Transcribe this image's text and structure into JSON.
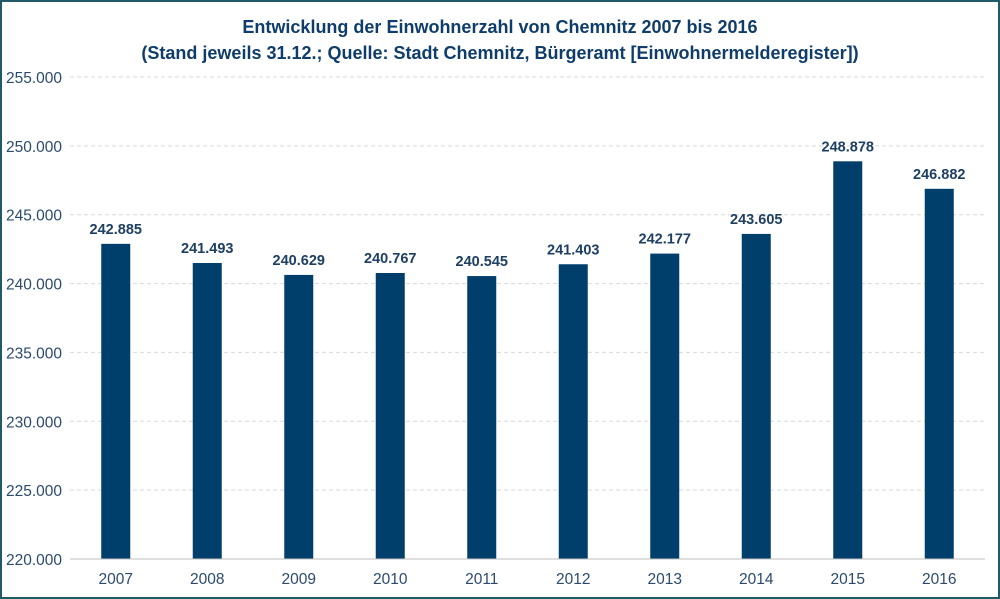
{
  "chart_data": {
    "type": "bar",
    "title": "Entwicklung der Einwohnerzahl von Chemnitz 2007 bis 2016",
    "subtitle": "(Stand jeweils 31.12.; Quelle: Stadt Chemnitz, Bürgeramt [Einwohnermelderegister])",
    "categories": [
      "2007",
      "2008",
      "2009",
      "2010",
      "2011",
      "2012",
      "2013",
      "2014",
      "2015",
      "2016"
    ],
    "values": [
      242885,
      241493,
      240629,
      240767,
      240545,
      241403,
      242177,
      243605,
      248878,
      246882
    ],
    "data_labels": [
      "242.885",
      "241.493",
      "240.629",
      "240.767",
      "240.545",
      "241.403",
      "242.177",
      "243.605",
      "248.878",
      "246.882"
    ],
    "ylim": [
      220000,
      255000
    ],
    "yticks": [
      220000,
      225000,
      230000,
      235000,
      240000,
      245000,
      250000,
      255000
    ],
    "ytick_labels": [
      "220.000",
      "225.000",
      "230.000",
      "235.000",
      "240.000",
      "245.000",
      "250.000",
      "255.000"
    ],
    "xlabel": "",
    "ylabel": "",
    "grid": true,
    "bar_color": "#003f6b"
  }
}
